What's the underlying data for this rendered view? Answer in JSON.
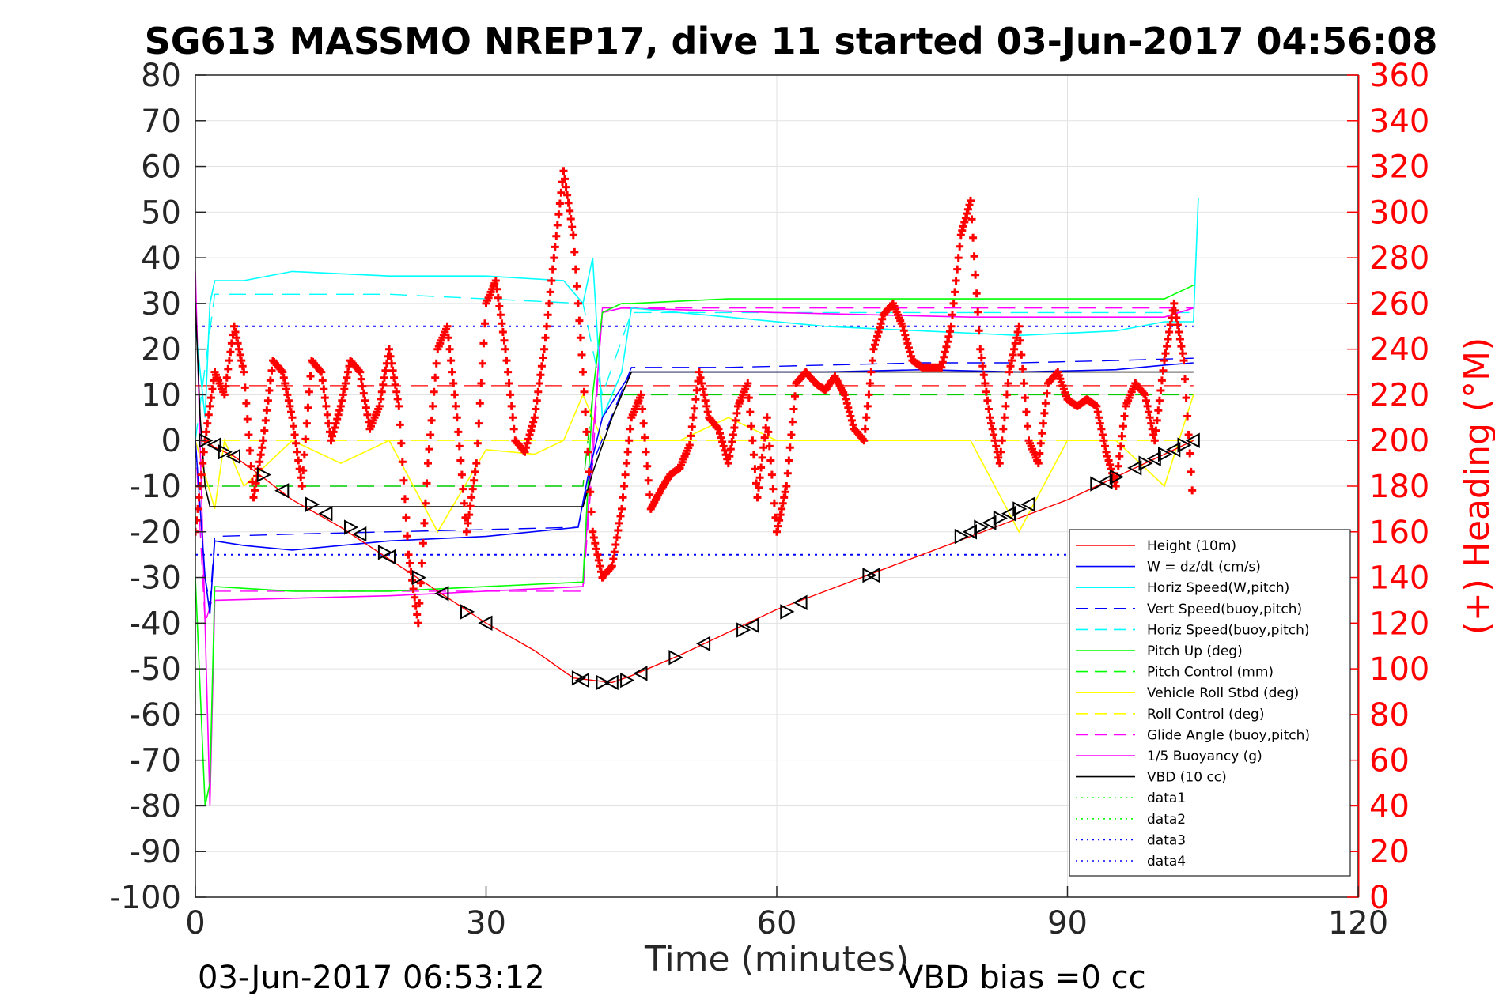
{
  "chart_data": {
    "type": "line",
    "title": "SG613 MASSMO NREP17, dive 11 started 03-Jun-2017 04:56:08",
    "xlabel": "Time (minutes)",
    "ylabel_right": "(+) Heading (°M)",
    "xlim": [
      0,
      120
    ],
    "ylim": [
      -100,
      80
    ],
    "y2lim": [
      0,
      360
    ],
    "xticks": [
      "0",
      "30",
      "60",
      "90",
      "120"
    ],
    "yticks": [
      "80",
      "70",
      "60",
      "50",
      "40",
      "30",
      "20",
      "10",
      "0",
      "-10",
      "-20",
      "-30",
      "-40",
      "-50",
      "-60",
      "-70",
      "-80",
      "-90",
      "-100"
    ],
    "y2ticks": [
      "360",
      "340",
      "320",
      "300",
      "280",
      "260",
      "240",
      "220",
      "200",
      "180",
      "160",
      "140",
      "120",
      "100",
      "80",
      "60",
      "40",
      "20",
      "0"
    ],
    "grid": true,
    "legend_position": "bottom-right",
    "footer_left": "03-Jun-2017 06:53:12",
    "footer_right": "VBD bias =0 cc",
    "colors": {
      "height": "#ff0000",
      "w": "#0000ff",
      "horiz_speed": "#00ffff",
      "pitch": "#00ff00",
      "roll": "#ffff00",
      "buoyancy": "#ff00ff",
      "vbd": "#000000",
      "heading": "#ff0000"
    },
    "legend": [
      {
        "name": "Height (10m)",
        "color": "#ff0000",
        "dash": "solid"
      },
      {
        "name": "W = dz/dt (cm/s)",
        "color": "#0000ff",
        "dash": "solid"
      },
      {
        "name": "Horiz Speed(W,pitch)",
        "color": "#00ffff",
        "dash": "solid"
      },
      {
        "name": "Vert Speed(buoy,pitch)",
        "color": "#0000ff",
        "dash": "dashed"
      },
      {
        "name": "Horiz Speed(buoy,pitch)",
        "color": "#00ffff",
        "dash": "dashed"
      },
      {
        "name": "Pitch Up (deg)",
        "color": "#00ff00",
        "dash": "solid"
      },
      {
        "name": "Pitch Control (mm)",
        "color": "#00ff00",
        "dash": "dashed"
      },
      {
        "name": "Vehicle Roll Stbd (deg)",
        "color": "#ffff00",
        "dash": "solid"
      },
      {
        "name": "Roll Control (deg)",
        "color": "#ffff00",
        "dash": "dashed"
      },
      {
        "name": "Glide Angle (buoy,pitch)",
        "color": "#ff00ff",
        "dash": "dashed"
      },
      {
        "name": "1/5 Buoyancy (g)",
        "color": "#ff00ff",
        "dash": "solid"
      },
      {
        "name": "VBD (10 cc)",
        "color": "#000000",
        "dash": "solid"
      },
      {
        "name": "data1",
        "color": "#00ff00",
        "dash": "dotted"
      },
      {
        "name": "data2",
        "color": "#00ff00",
        "dash": "dotted"
      },
      {
        "name": "data3",
        "color": "#0000ff",
        "dash": "dotted"
      },
      {
        "name": "data4",
        "color": "#0000ff",
        "dash": "dotted"
      }
    ],
    "series": [
      {
        "key": "height",
        "x": [
          0,
          1,
          2,
          4,
          6,
          10,
          15,
          20,
          25,
          30,
          35,
          39,
          41,
          43,
          45,
          50,
          55,
          60,
          65,
          70,
          75,
          80,
          85,
          90,
          95,
          100,
          103
        ],
        "y": [
          0,
          0,
          -1.5,
          -3.5,
          -6.5,
          -13,
          -19,
          -26,
          -33,
          -40,
          -46,
          -52,
          -52.5,
          -53,
          -51.5,
          -47,
          -42,
          -37,
          -33,
          -29,
          -25,
          -21,
          -17,
          -13,
          -8,
          -3,
          0
        ]
      },
      {
        "key": "w",
        "x": [
          0,
          1,
          1.5,
          2,
          5,
          10,
          20,
          30,
          39.5,
          40.5,
          42,
          45,
          55,
          65,
          75,
          85,
          95,
          100,
          103
        ],
        "y": [
          0,
          -30,
          -38,
          -22,
          -23,
          -24,
          -22,
          -21,
          -19,
          -8,
          5,
          15,
          15,
          15,
          15.5,
          15,
          15.5,
          16.5,
          17
        ]
      },
      {
        "key": "vert_speed",
        "x": [
          0,
          1,
          1.5,
          2,
          10,
          20,
          30,
          39.5,
          41,
          45,
          55,
          65,
          75,
          85,
          95,
          103
        ],
        "y": [
          0,
          -30,
          -36,
          -21,
          -20.5,
          -20,
          -19.5,
          -19,
          -5,
          16,
          16,
          16.5,
          17,
          17,
          17.5,
          18
        ]
      },
      {
        "key": "horiz_speed",
        "x": [
          0,
          1,
          1.5,
          2,
          5,
          10,
          20,
          30,
          38,
          40,
          41,
          42,
          44,
          45,
          55,
          65,
          75,
          85,
          95,
          100,
          103,
          103.5
        ],
        "y": [
          25,
          5,
          30,
          35,
          35,
          37,
          36,
          36,
          35,
          30,
          40,
          5,
          15,
          29,
          27,
          25,
          24,
          23,
          24,
          26,
          26,
          53
        ]
      },
      {
        "key": "horiz_speed_b",
        "x": [
          0,
          2,
          10,
          20,
          30,
          40,
          42,
          45,
          60,
          80,
          100,
          103
        ],
        "y": [
          0,
          32,
          32,
          32,
          31,
          30,
          10,
          28,
          28,
          28,
          28,
          28
        ]
      },
      {
        "key": "pitch",
        "x": [
          0,
          1,
          1.5,
          2,
          10,
          20,
          30,
          40,
          41,
          42,
          44,
          45,
          55,
          65,
          75,
          85,
          95,
          100,
          103
        ],
        "y": [
          -30,
          -80,
          -75,
          -32,
          -33,
          -33,
          -32,
          -31,
          10,
          28,
          30,
          30,
          31,
          31,
          31,
          31,
          31,
          31,
          34
        ]
      },
      {
        "key": "pitch_control",
        "x": [
          0,
          2,
          40,
          41,
          103
        ],
        "y": [
          -10,
          -10,
          -10,
          10,
          10
        ]
      },
      {
        "key": "roll",
        "x": [
          0,
          2,
          3,
          5,
          10,
          15,
          20,
          25,
          30,
          35,
          38,
          40,
          42,
          45,
          50,
          55,
          60,
          65,
          70,
          75,
          80,
          85,
          90,
          95,
          100,
          103
        ],
        "y": [
          0,
          -15,
          0,
          -10,
          0,
          -5,
          0,
          -20,
          -2,
          -3,
          0,
          10,
          0,
          0,
          0,
          5,
          0,
          0,
          0,
          0,
          0,
          -20,
          0,
          0,
          -10,
          10
        ]
      },
      {
        "key": "roll_control",
        "x": [
          0,
          103
        ],
        "y": [
          0,
          0
        ]
      },
      {
        "key": "glide_angle",
        "x": [
          0,
          1,
          2,
          40,
          41,
          42,
          103
        ],
        "y": [
          0,
          -40,
          -33,
          -33,
          -5,
          29,
          29
        ]
      },
      {
        "key": "buoyancy",
        "x": [
          0,
          1,
          1.5,
          2,
          20,
          40,
          41,
          42,
          44,
          60,
          80,
          100,
          103
        ],
        "y": [
          37,
          -40,
          -80,
          -35,
          -34,
          -32,
          0,
          28,
          29,
          28,
          27,
          27,
          29
        ]
      },
      {
        "key": "vbd",
        "x": [
          0,
          0.5,
          1,
          1.5,
          2,
          40,
          41,
          43,
          45,
          103
        ],
        "y": [
          30,
          5,
          -10,
          -14.5,
          -14.5,
          -14.5,
          -7,
          5,
          15,
          15
        ]
      },
      {
        "key": "data3",
        "x": [
          0,
          103
        ],
        "y": [
          25,
          25
        ]
      },
      {
        "key": "data4",
        "x": [
          0,
          103
        ],
        "y": [
          -25,
          -25
        ]
      },
      {
        "key": "pitch_ref",
        "x": [
          0,
          103
        ],
        "y": [
          12,
          12
        ]
      },
      {
        "key": "heading",
        "x": [
          0,
          1,
          2,
          3,
          4,
          5,
          6,
          7,
          8,
          9,
          10,
          11,
          12,
          13,
          14,
          15,
          16,
          17,
          18,
          19,
          20,
          21,
          22,
          23,
          24,
          25,
          26,
          27,
          28,
          29,
          30,
          31,
          32,
          33,
          34,
          35,
          36,
          37,
          38,
          39,
          40,
          41,
          42,
          43,
          44,
          45,
          46,
          47,
          48,
          49,
          50,
          51,
          52,
          53,
          54,
          55,
          56,
          57,
          58,
          59,
          60,
          61,
          62,
          63,
          64,
          65,
          66,
          67,
          68,
          69,
          70,
          71,
          72,
          73,
          74,
          75,
          76,
          77,
          78,
          79,
          80,
          81,
          82,
          83,
          84,
          85,
          86,
          87,
          88,
          89,
          90,
          91,
          92,
          93,
          94,
          95,
          96,
          97,
          98,
          99,
          100,
          101,
          102,
          103
        ],
        "y": [
          160,
          200,
          230,
          220,
          250,
          230,
          175,
          200,
          235,
          230,
          210,
          180,
          235,
          230,
          200,
          215,
          235,
          230,
          205,
          215,
          240,
          215,
          150,
          120,
          190,
          240,
          250,
          210,
          160,
          190,
          260,
          270,
          240,
          200,
          195,
          210,
          240,
          280,
          318,
          290,
          230,
          160,
          140,
          145,
          170,
          210,
          220,
          170,
          178,
          185,
          188,
          198,
          230,
          210,
          205,
          190,
          215,
          225,
          175,
          210,
          160,
          180,
          225,
          230,
          225,
          222,
          228,
          220,
          205,
          200,
          240,
          255,
          260,
          250,
          235,
          232,
          232,
          232,
          250,
          290,
          305,
          240,
          210,
          190,
          230,
          250,
          200,
          190,
          225,
          230,
          218,
          215,
          218,
          215,
          195,
          180,
          215,
          225,
          220,
          200,
          235,
          260,
          235,
          170
        ]
      },
      {
        "key": "markers",
        "x": [
          1,
          2,
          3,
          4,
          7,
          9,
          12,
          13.5,
          16,
          17,
          19.5,
          20,
          23,
          25.5,
          28,
          30,
          39.5,
          40,
          42,
          43,
          44.5,
          46,
          49.5,
          52.5,
          56.5,
          57.5,
          61,
          62.5,
          69.5,
          70,
          79,
          80,
          81,
          82,
          83,
          84,
          85,
          86,
          93,
          94,
          95,
          97,
          98,
          99,
          100,
          101,
          102,
          103
        ],
        "y": [
          0,
          -1,
          -2.5,
          -3.5,
          -7.5,
          -11,
          -14,
          -16,
          -19,
          -20.5,
          -24.5,
          -25.5,
          -30,
          -33.5,
          -37.5,
          -40,
          -52,
          -52.5,
          -53,
          -53,
          -52.5,
          -51,
          -47.5,
          -44.5,
          -41.5,
          -40.5,
          -37.5,
          -35.5,
          -29.5,
          -29.5,
          -21,
          -20,
          -19,
          -18,
          -17,
          -16,
          -15,
          -14,
          -9.5,
          -9,
          -8,
          -6,
          -5,
          -4,
          -3,
          -2,
          -1,
          0
        ]
      }
    ]
  }
}
